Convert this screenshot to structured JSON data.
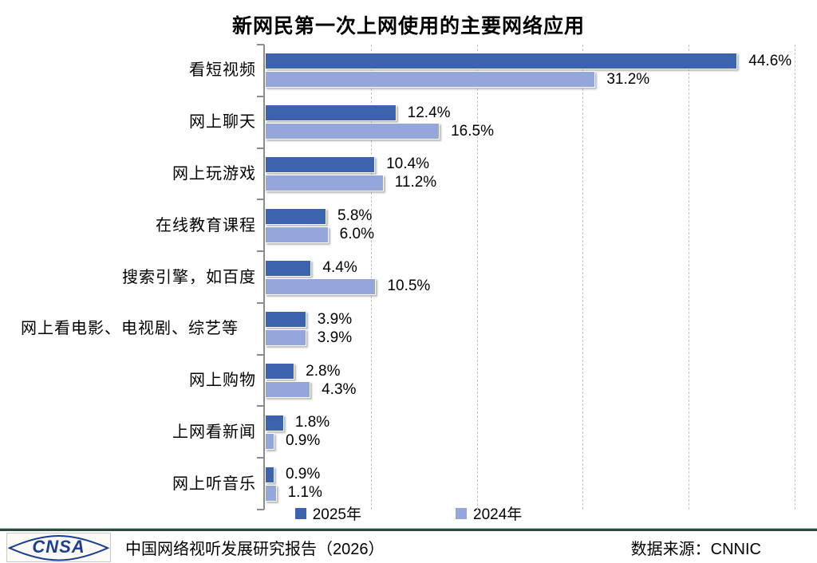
{
  "chart_data": {
    "type": "bar",
    "orientation": "horizontal",
    "title": "新网民第一次上网使用的主要网络应用",
    "categories": [
      "看短视频",
      "网上聊天",
      "网上玩游戏",
      "在线教育课程",
      "搜索引擎，如百度",
      "网上看电影、电视剧、综艺等",
      "网上购物",
      "上网看新闻",
      "网上听音乐"
    ],
    "series": [
      {
        "name": "2025年",
        "color": "#3e63ae",
        "values": [
          44.6,
          12.4,
          10.4,
          5.8,
          4.4,
          3.9,
          2.8,
          1.8,
          0.9
        ]
      },
      {
        "name": "2024年",
        "color": "#94a6db",
        "values": [
          31.2,
          16.5,
          11.2,
          6.0,
          10.5,
          3.9,
          4.3,
          0.9,
          1.1
        ]
      }
    ],
    "value_suffix": "%",
    "xlim": [
      0,
      50
    ],
    "gridline_step": 10,
    "grid": "dashed-vertical",
    "legend_position": "bottom"
  },
  "footer": {
    "logo_text": "CNSA",
    "report": "中国网络视听发展研究报告（2026）",
    "source": "数据来源：CNNIC"
  }
}
